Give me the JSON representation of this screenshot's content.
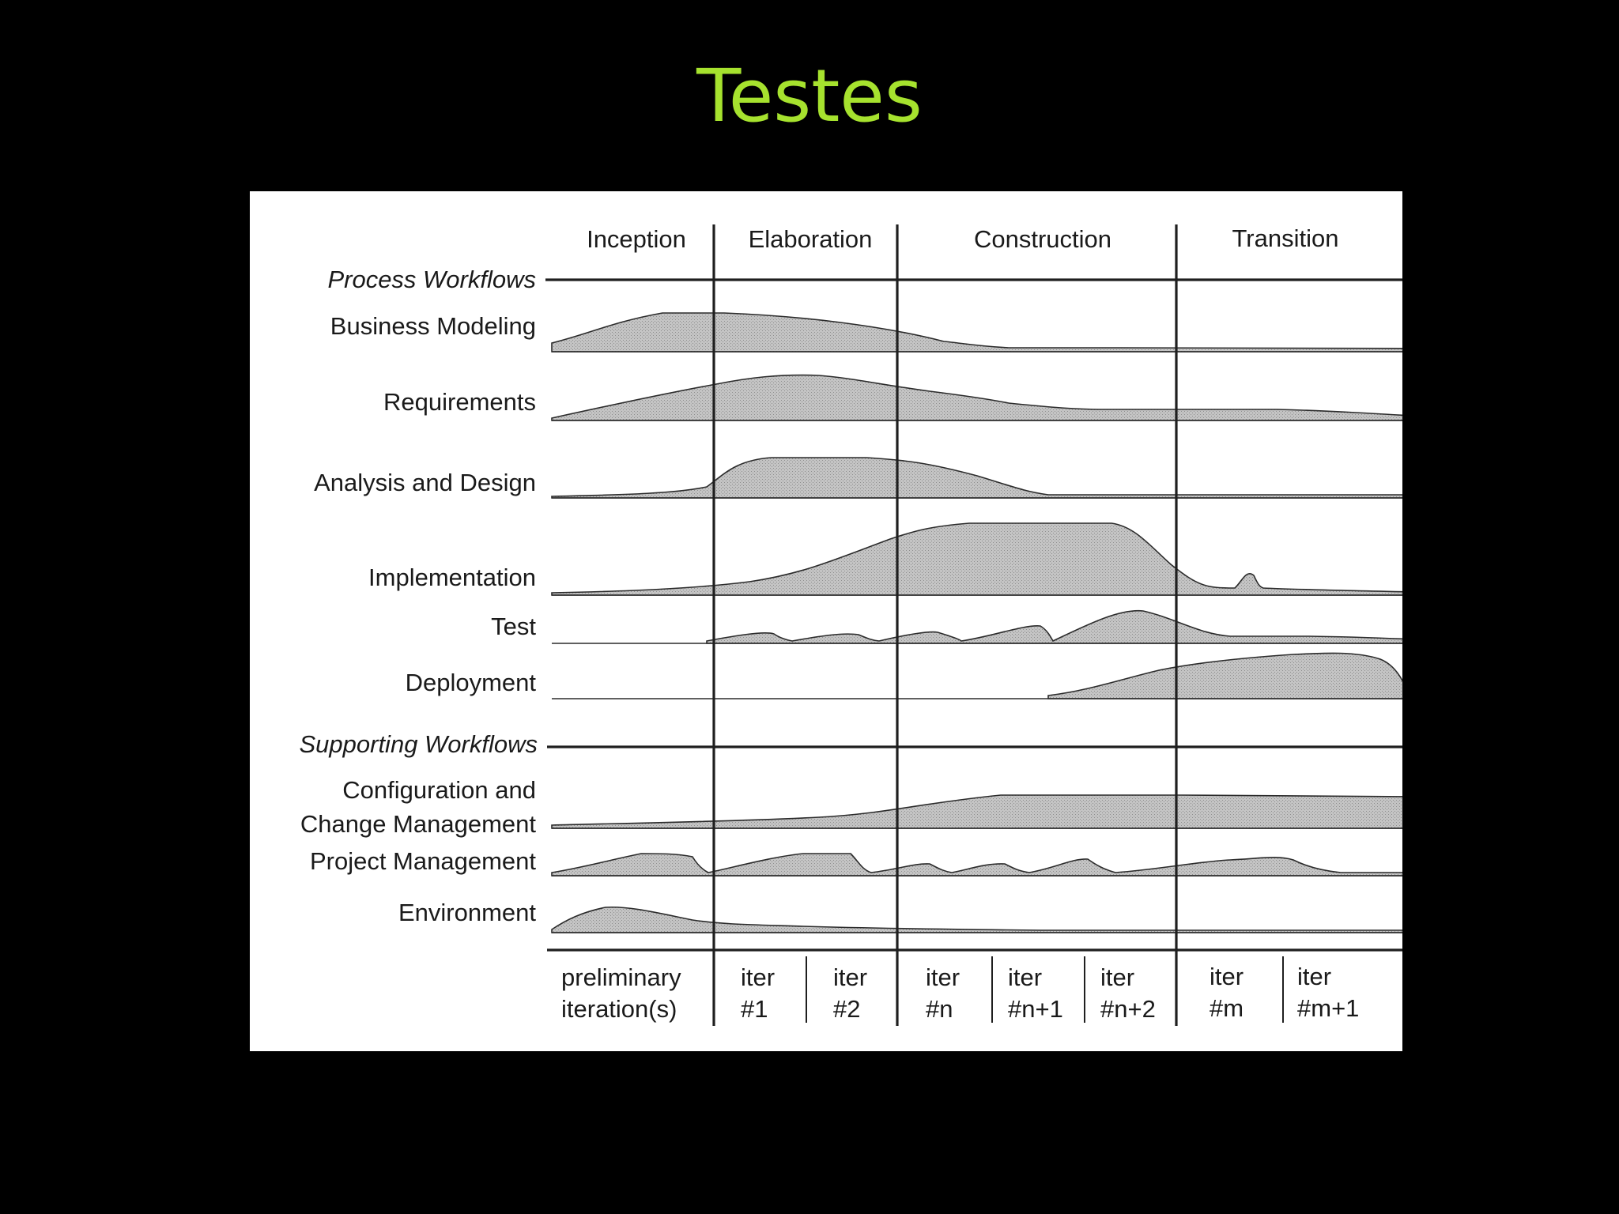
{
  "slide": {
    "title": "Testes",
    "title_color": "#a6e22e",
    "background": "#000000"
  },
  "diagram": {
    "phases": [
      "Inception",
      "Elaboration",
      "Construction",
      "Transition"
    ],
    "section_headers": {
      "process": "Process Workflows",
      "supporting": "Supporting Workflows"
    },
    "workflows": [
      {
        "key": "business-modeling",
        "label_lines": [
          "Business Modeling"
        ]
      },
      {
        "key": "requirements",
        "label_lines": [
          "Requirements"
        ]
      },
      {
        "key": "analysis-and-design",
        "label_lines": [
          "Analysis and Design"
        ]
      },
      {
        "key": "implementation",
        "label_lines": [
          "Implementation"
        ]
      },
      {
        "key": "test",
        "label_lines": [
          "Test"
        ]
      },
      {
        "key": "deployment",
        "label_lines": [
          "Deployment"
        ]
      },
      {
        "key": "configuration-and-change-management",
        "label_lines": [
          "Configuration and",
          "Change Management"
        ]
      },
      {
        "key": "project-management",
        "label_lines": [
          "Project Management"
        ]
      },
      {
        "key": "environment",
        "label_lines": [
          "Environment"
        ]
      }
    ],
    "iterations": [
      {
        "line1": "preliminary",
        "line2": "iteration(s)"
      },
      {
        "line1": "iter",
        "line2": "#1"
      },
      {
        "line1": "iter",
        "line2": "#2"
      },
      {
        "line1": "iter",
        "line2": "#n"
      },
      {
        "line1": "iter",
        "line2": "#n+1"
      },
      {
        "line1": "iter",
        "line2": "#n+2"
      },
      {
        "line1": "iter",
        "line2": "#m"
      },
      {
        "line1": "iter",
        "line2": "#m+1"
      }
    ]
  }
}
